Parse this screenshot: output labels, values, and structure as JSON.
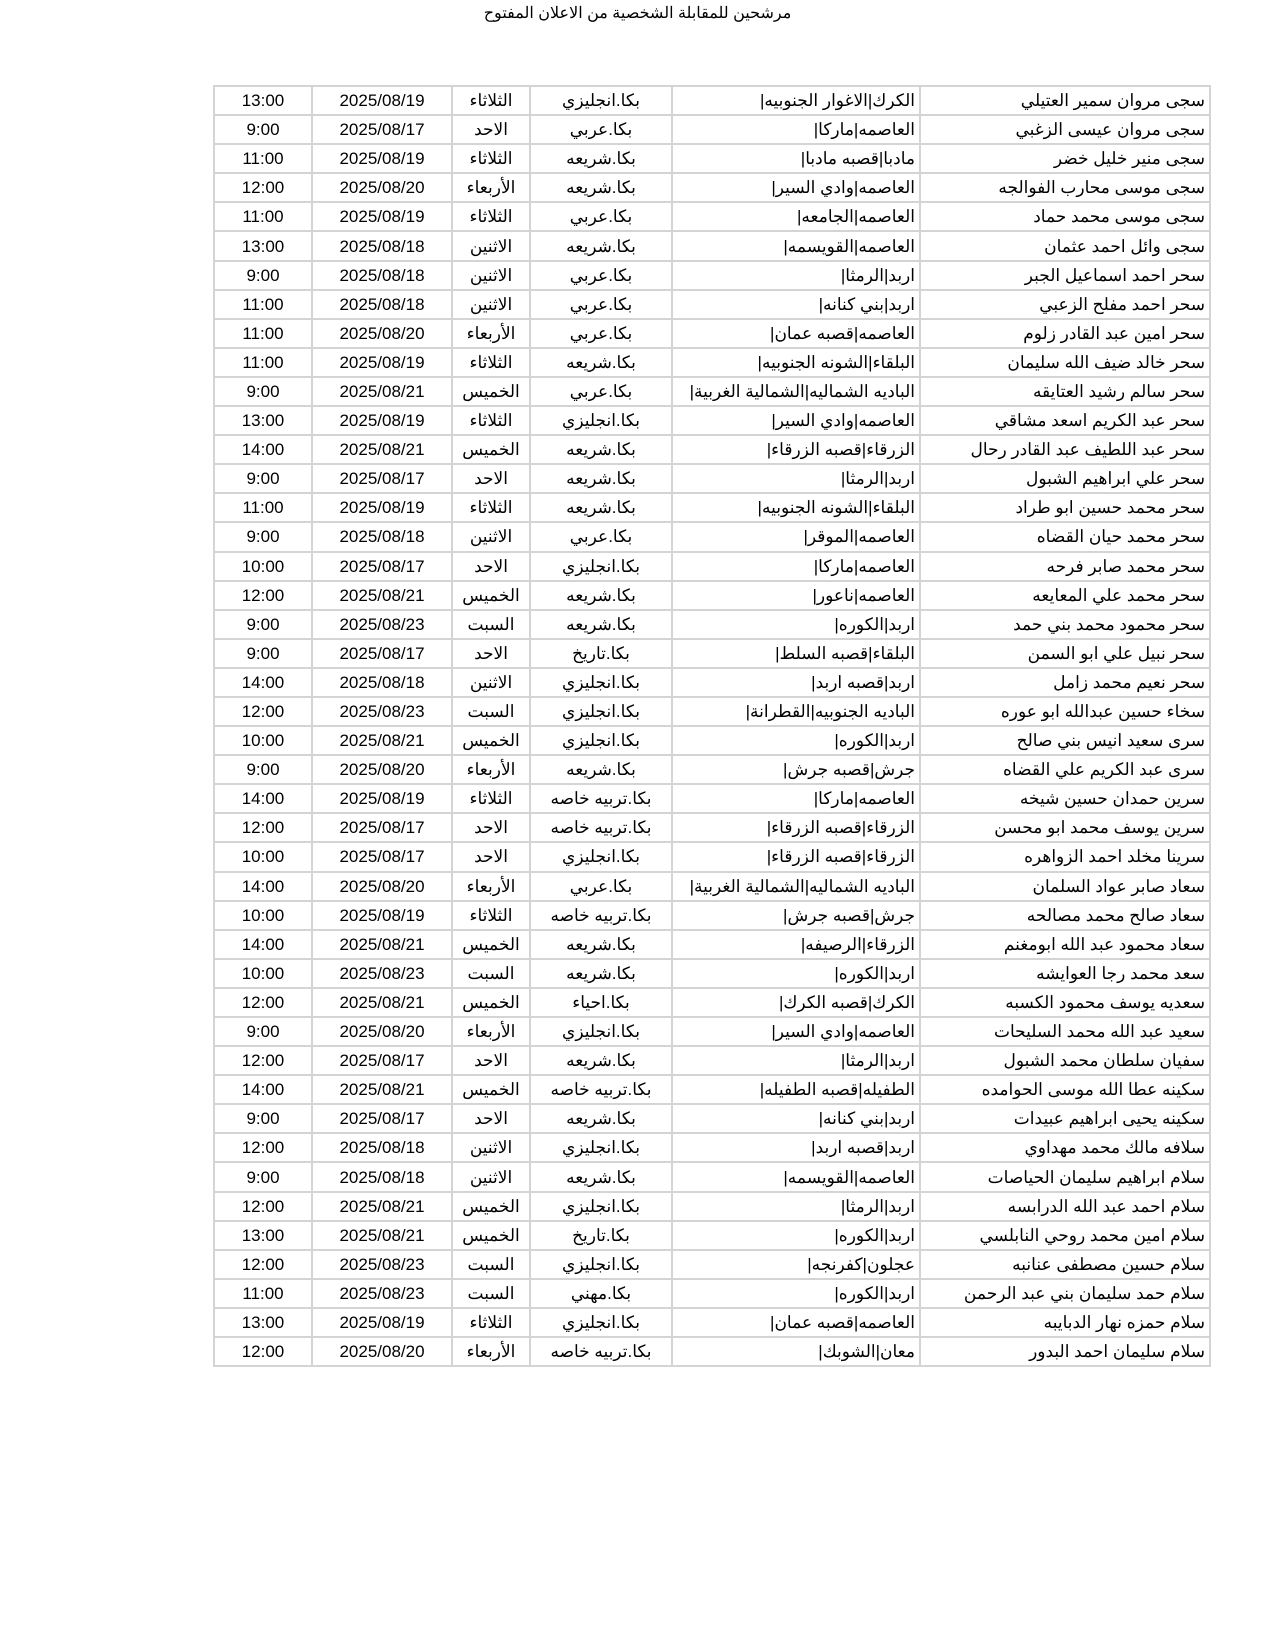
{
  "title": "مرشحين للمقابلة الشخصية من الاعلان المفتوح",
  "rows": [
    [
      "سجى مروان سمير العتيلي",
      "الكرك|الاغوار الجنوبيه|",
      "بكا.انجليزي",
      "الثلاثاء",
      "2025/08/19",
      "13:00"
    ],
    [
      "سجى مروان عيسى الزغبي",
      "العاصمه|ماركا|",
      "بكا.عربي",
      "الاحد",
      "2025/08/17",
      "9:00"
    ],
    [
      "سجى منير خليل خضر",
      "مادبا|قصبه مادبا|",
      "بكا.شريعه",
      "الثلاثاء",
      "2025/08/19",
      "11:00"
    ],
    [
      "سجى موسى محارب الفوالجه",
      "العاصمه|وادي السير|",
      "بكا.شريعه",
      "الأربعاء",
      "2025/08/20",
      "12:00"
    ],
    [
      "سجى موسى محمد حماد",
      "العاصمه|الجامعه|",
      "بكا.عربي",
      "الثلاثاء",
      "2025/08/19",
      "11:00"
    ],
    [
      "سجى وائل احمد عثمان",
      "العاصمه|القويسمه|",
      "بكا.شريعه",
      "الاثنين",
      "2025/08/18",
      "13:00"
    ],
    [
      "سحر احمد اسماعيل الجبر",
      "اربد|الرمثا|",
      "بكا.عربي",
      "الاثنين",
      "2025/08/18",
      "9:00"
    ],
    [
      "سحر احمد مفلح الزعبي",
      "اربد|بني كنانه|",
      "بكا.عربي",
      "الاثنين",
      "2025/08/18",
      "11:00"
    ],
    [
      "سحر امين عبد القادر زلوم",
      "العاصمه|قصبه عمان|",
      "بكا.عربي",
      "الأربعاء",
      "2025/08/20",
      "11:00"
    ],
    [
      "سحر خالد ضيف الله سليمان",
      "البلقاء|الشونه الجنوبيه|",
      "بكا.شريعه",
      "الثلاثاء",
      "2025/08/19",
      "11:00"
    ],
    [
      "سحر سالم رشيد العتايقه",
      "الباديه الشماليه|الشمالية الغربية|",
      "بكا.عربي",
      "الخميس",
      "2025/08/21",
      "9:00"
    ],
    [
      "سحر عبد الكريم اسعد مشاقي",
      "العاصمه|وادي السير|",
      "بكا.انجليزي",
      "الثلاثاء",
      "2025/08/19",
      "13:00"
    ],
    [
      "سحر عبد اللطيف عبد القادر رحال",
      "الزرقاء|قصبه الزرقاء|",
      "بكا.شريعه",
      "الخميس",
      "2025/08/21",
      "14:00"
    ],
    [
      "سحر علي ابراهيم الشبول",
      "اربد|الرمثا|",
      "بكا.شريعه",
      "الاحد",
      "2025/08/17",
      "9:00"
    ],
    [
      "سحر محمد حسين ابو طراد",
      "البلقاء|الشونه الجنوبيه|",
      "بكا.شريعه",
      "الثلاثاء",
      "2025/08/19",
      "11:00"
    ],
    [
      "سحر محمد حيان القضاه",
      "العاصمه|الموقر|",
      "بكا.عربي",
      "الاثنين",
      "2025/08/18",
      "9:00"
    ],
    [
      "سحر محمد صابر فرحه",
      "العاصمه|ماركا|",
      "بكا.انجليزي",
      "الاحد",
      "2025/08/17",
      "10:00"
    ],
    [
      "سحر محمد علي المعايعه",
      "العاصمه|ناعور|",
      "بكا.شريعه",
      "الخميس",
      "2025/08/21",
      "12:00"
    ],
    [
      "سحر محمود محمد بني حمد",
      "اربد|الكوره|",
      "بكا.شريعه",
      "السبت",
      "2025/08/23",
      "9:00"
    ],
    [
      "سحر نبيل علي ابو السمن",
      "البلقاء|قصبه السلط|",
      "بكا.تاريخ",
      "الاحد",
      "2025/08/17",
      "9:00"
    ],
    [
      "سحر نعيم محمد زامل",
      "اربد|قصبه اربد|",
      "بكا.انجليزي",
      "الاثنين",
      "2025/08/18",
      "14:00"
    ],
    [
      "سخاء حسين عبدالله ابو عوره",
      "الباديه الجنوبيه|القطرانة|",
      "بكا.انجليزي",
      "السبت",
      "2025/08/23",
      "12:00"
    ],
    [
      "سرى سعيد انيس بني صالح",
      "اربد|الكوره|",
      "بكا.انجليزي",
      "الخميس",
      "2025/08/21",
      "10:00"
    ],
    [
      "سرى عبد الكريم علي القضاه",
      "جرش|قصبه جرش|",
      "بكا.شريعه",
      "الأربعاء",
      "2025/08/20",
      "9:00"
    ],
    [
      "سرين حمدان حسين شيخه",
      "العاصمه|ماركا|",
      "بكا.تربيه خاصه",
      "الثلاثاء",
      "2025/08/19",
      "14:00"
    ],
    [
      "سرين يوسف محمد ابو محسن",
      "الزرقاء|قصبه الزرقاء|",
      "بكا.تربيه خاصه",
      "الاحد",
      "2025/08/17",
      "12:00"
    ],
    [
      "سرينا مخلد احمد الزواهره",
      "الزرقاء|قصبه الزرقاء|",
      "بكا.انجليزي",
      "الاحد",
      "2025/08/17",
      "10:00"
    ],
    [
      "سعاد صابر عواد السلمان",
      "الباديه الشماليه|الشمالية الغربية|",
      "بكا.عربي",
      "الأربعاء",
      "2025/08/20",
      "14:00"
    ],
    [
      "سعاد صالح محمد مصالحه",
      "جرش|قصبه جرش|",
      "بكا.تربيه خاصه",
      "الثلاثاء",
      "2025/08/19",
      "10:00"
    ],
    [
      "سعاد محمود عبد الله ابومغنم",
      "الزرقاء|الرصيفه|",
      "بكا.شريعه",
      "الخميس",
      "2025/08/21",
      "14:00"
    ],
    [
      "سعد محمد رجا العوايشه",
      "اربد|الكوره|",
      "بكا.شريعه",
      "السبت",
      "2025/08/23",
      "10:00"
    ],
    [
      "سعديه يوسف محمود الكسبه",
      "الكرك|قصبه الكرك|",
      "بكا.احياء",
      "الخميس",
      "2025/08/21",
      "12:00"
    ],
    [
      "سعيد عبد الله محمد السليحات",
      "العاصمه|وادي السير|",
      "بكا.انجليزي",
      "الأربعاء",
      "2025/08/20",
      "9:00"
    ],
    [
      "سفيان سلطان محمد الشبول",
      "اربد|الرمثا|",
      "بكا.شريعه",
      "الاحد",
      "2025/08/17",
      "12:00"
    ],
    [
      "سكينه عطا الله موسى الحوامده",
      "الطفيله|قصبه الطفيله|",
      "بكا.تربيه خاصه",
      "الخميس",
      "2025/08/21",
      "14:00"
    ],
    [
      "سكينه يحيى ابراهيم عبيدات",
      "اربد|بني كنانه|",
      "بكا.شريعه",
      "الاحد",
      "2025/08/17",
      "9:00"
    ],
    [
      "سلافه مالك محمد مهداوي",
      "اربد|قصبه اربد|",
      "بكا.انجليزي",
      "الاثنين",
      "2025/08/18",
      "12:00"
    ],
    [
      "سلام ابراهيم سليمان الحياصات",
      "العاصمه|القويسمه|",
      "بكا.شريعه",
      "الاثنين",
      "2025/08/18",
      "9:00"
    ],
    [
      "سلام احمد عبد الله الدرابسه",
      "اربد|الرمثا|",
      "بكا.انجليزي",
      "الخميس",
      "2025/08/21",
      "12:00"
    ],
    [
      "سلام امين محمد روحي النابلسي",
      "اربد|الكوره|",
      "بكا.تاريخ",
      "الخميس",
      "2025/08/21",
      "13:00"
    ],
    [
      "سلام حسين مصطفى عنانبه",
      "عجلون|كفرنجه|",
      "بكا.انجليزي",
      "السبت",
      "2025/08/23",
      "12:00"
    ],
    [
      "سلام حمد سليمان بني عبد الرحمن",
      "اربد|الكوره|",
      "بكا.مهني",
      "السبت",
      "2025/08/23",
      "11:00"
    ],
    [
      "سلام حمزه نهار الدبايبه",
      "العاصمه|قصبه عمان|",
      "بكا.انجليزي",
      "الثلاثاء",
      "2025/08/19",
      "13:00"
    ],
    [
      "سلام سليمان احمد البدور",
      "معان|الشوبك|",
      "بكا.تربيه خاصه",
      "الأربعاء",
      "2025/08/20",
      "12:00"
    ]
  ]
}
